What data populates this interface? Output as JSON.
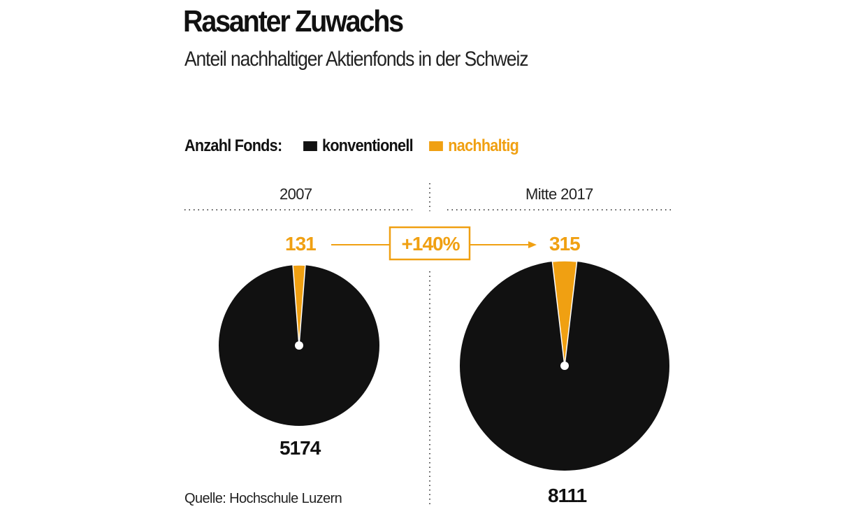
{
  "chart_data": {
    "type": "pie",
    "title": "Rasanter Zuwachs",
    "subtitle": "Anteil nachhaltiger Aktienfonds in der Schweiz",
    "legend": {
      "label": "Anzahl Fonds:",
      "placement": "top-left",
      "entries": [
        {
          "name": "konventionell",
          "color": "#111111"
        },
        {
          "name": "nachhaltig",
          "color": "#f0a012"
        }
      ]
    },
    "pies": [
      {
        "label": "2007",
        "konventionell": 5174,
        "nachhaltig": 131
      },
      {
        "label": "Mitte 2017",
        "konventionell": 8111,
        "nachhaltig": 315
      }
    ],
    "change_label": "+140%",
    "source": "Quelle: Hochschule Luzern"
  }
}
